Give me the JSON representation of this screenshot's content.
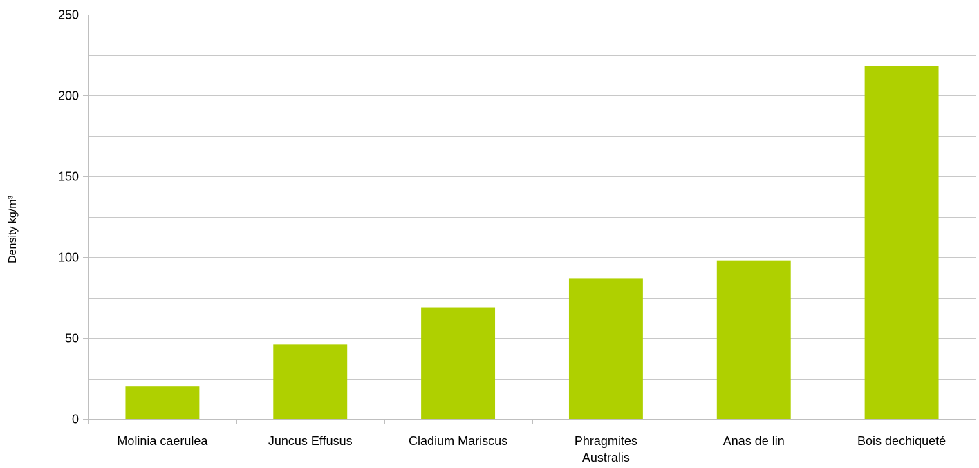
{
  "chart_data": {
    "type": "bar",
    "title": "",
    "xlabel": "",
    "ylabel": "Density kg/m³",
    "categories": [
      [
        "Molinia caerulea"
      ],
      [
        "Juncus Effusus"
      ],
      [
        "Cladium Mariscus"
      ],
      [
        "Phragmites",
        "Australis"
      ],
      [
        "Anas de lin"
      ],
      [
        "Bois dechiqueté"
      ]
    ],
    "values": [
      20,
      46,
      69,
      87,
      98,
      218
    ],
    "ylim": [
      0,
      250
    ],
    "yticks": [
      0,
      50,
      100,
      150,
      200,
      250
    ],
    "grid": true,
    "legend": "none",
    "colors": {
      "bar": "#afd000",
      "grid": "#c8c8c8",
      "axis": "#bfbfbf"
    }
  }
}
